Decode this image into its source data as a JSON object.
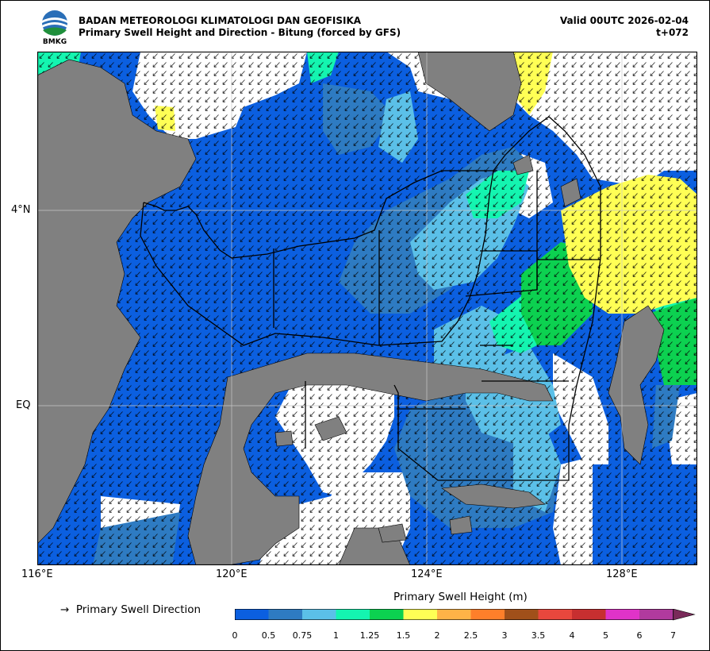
{
  "header": {
    "org": "BADAN METEOROLOGI KLIMATOLOGI DAN GEOFISIKA",
    "subtitle": "Primary Swell Height and Direction - Bitung (forced by GFS)",
    "valid": "Valid 00UTC 2026-02-04",
    "step": "t+072",
    "logo_text": "BMKG"
  },
  "axes": {
    "x_ticks": [
      "116°E",
      "120°E",
      "124°E",
      "128°E"
    ],
    "y_ticks": [
      "4°N",
      "EQ"
    ]
  },
  "legend": {
    "direction_label": "Primary Swell Direction",
    "arrow_glyph": "→",
    "colorbar_label": "Primary Swell Height (m)",
    "bounds": [
      "0",
      "0.5",
      "0.75",
      "1",
      "1.25",
      "1.5",
      "2",
      "2.5",
      "3",
      "3.5",
      "4",
      "5",
      "6",
      "7"
    ],
    "colors": [
      "#0b5fe0",
      "#2e7bc2",
      "#5bc0e8",
      "#14f5b0",
      "#0cd150",
      "#ffff55",
      "#ffb347",
      "#ff7f2a",
      "#a0501a",
      "#e8473d",
      "#c72f30",
      "#e033c8",
      "#b13a9e",
      "#7a2a5a"
    ]
  },
  "colors": {
    "land": "#808080",
    "sea_low": "#0b5fe0",
    "sea_mid": "#2e7bc2",
    "sea_lightblue": "#5bc0e8",
    "sea_cyan": "#14f5b0",
    "sea_green": "#0cd150",
    "sea_yellow": "#ffff55"
  }
}
